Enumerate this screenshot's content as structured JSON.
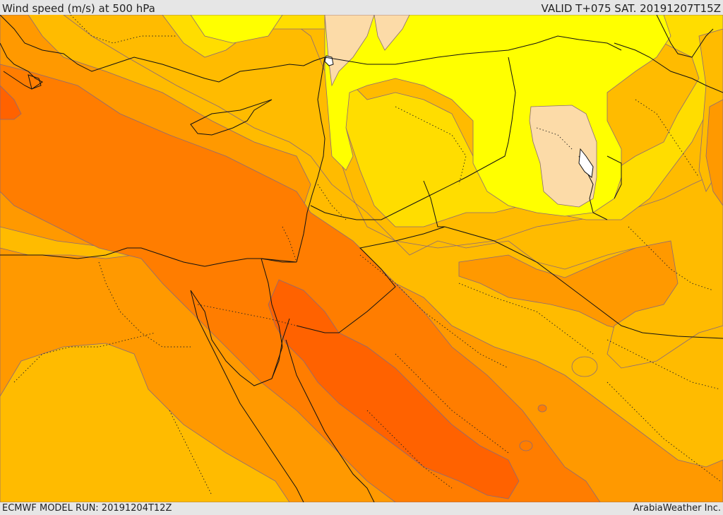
{
  "header": {
    "title": "Wind speed (m/s) at 500 hPa",
    "valid": "VALID T+075 SAT. 20191207T15Z"
  },
  "footer": {
    "model_run": "ECMWF MODEL RUN: 20191204T12Z",
    "credit": "ArabiaWeather Inc."
  },
  "colors": {
    "band_slow": "#fcdba8",
    "band_1": "#ffff00",
    "band_2": "#ffdd00",
    "band_3": "#ffbb00",
    "band_4": "#ff9900",
    "band_5": "#ff7d00",
    "band_6": "#ff6200",
    "contour_line": "#7a6a8a",
    "coastline": "#111111"
  }
}
